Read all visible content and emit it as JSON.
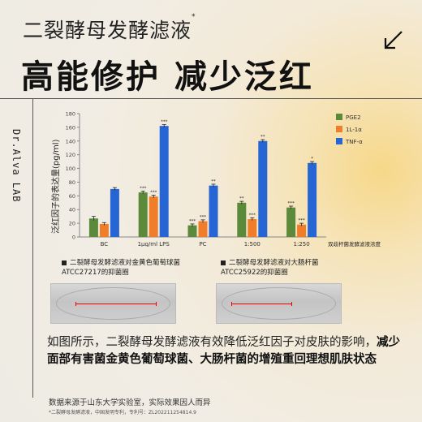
{
  "header": {
    "subtitle": "二裂酵母发酵滤液",
    "subtitle_mark": "*",
    "title": "高能修护 减少泛红"
  },
  "brand": "Dr.Alva LAB",
  "chart_data": {
    "type": "bar",
    "ylabel": "泛红因子的表达量(pg/ml)",
    "xlabel": "双歧杆菌发酵滤液浓度",
    "ylim": [
      0,
      180
    ],
    "yticks": [
      0,
      20,
      40,
      60,
      80,
      100,
      120,
      140,
      160,
      180
    ],
    "categories": [
      "BC",
      "1μg/ml LPS",
      "PC",
      "1:500",
      "1:250"
    ],
    "series": [
      {
        "name": "PGE2",
        "color": "#5b8a3a",
        "values": [
          27,
          65,
          17,
          50,
          43
        ],
        "errors": [
          3,
          2,
          2,
          2,
          2
        ],
        "marks": [
          "",
          "***",
          "***",
          "**",
          "***"
        ]
      },
      {
        "name": "1L-1α",
        "color": "#f07d2a",
        "values": [
          19,
          59,
          23,
          26,
          18
        ],
        "errors": [
          2,
          2,
          2,
          2,
          2
        ],
        "marks": [
          "",
          "***",
          "***",
          "***",
          "***"
        ]
      },
      {
        "name": "TNF-α",
        "color": "#2566d4",
        "values": [
          70,
          162,
          75,
          140,
          108
        ],
        "errors": [
          2,
          2,
          2,
          2,
          2
        ],
        "marks": [
          "",
          "***",
          "**",
          "**",
          "*"
        ]
      }
    ]
  },
  "captions": {
    "left_line1": "二裂酵母发酵滤液对金黄色葡萄球菌",
    "left_line2": "ATCC27217的抑菌圈",
    "right_line1": "二裂酵母发酵滤液对大肠杆菌",
    "right_line2": "ATCC25922的抑菌圈"
  },
  "paragraph": {
    "normal": "如图所示，二裂酵母发酵滤液有效降低泛红因子对皮肤的影响，",
    "bold": "减少面部有害菌金黄色葡萄球菌、大肠杆菌的增殖重回理想肌肤状态"
  },
  "footer": {
    "source": "数据来源于山东大学实验室，实际效果因人而异",
    "patent": "*二裂酵母发酵滤液，中国发明专利，专利号：ZL202211254814.9"
  },
  "colors": {
    "accent": "#111111",
    "pge2": "#5b8a3a",
    "il1a": "#f07d2a",
    "tnfa": "#2566d4"
  }
}
